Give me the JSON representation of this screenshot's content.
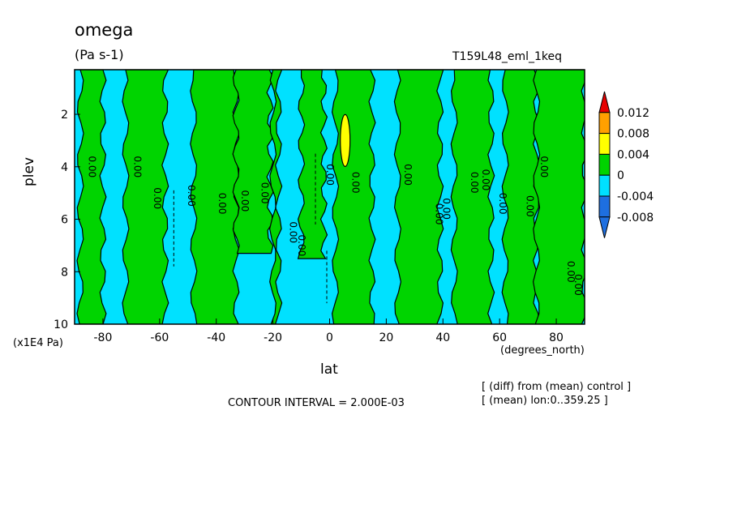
{
  "header": {
    "title": "omega",
    "units": "(Pa s-1)",
    "run_name": "T159L48_eml_1keq"
  },
  "notes": {
    "contour_interval": "CONTOUR INTERVAL = 2.000E-03",
    "diff_note": "[ (diff) from (mean) control ]",
    "mean_note": "[ (mean) lon:0..359.25 ]"
  },
  "chart_data": {
    "type": "heatmap",
    "title": "omega",
    "units": "(Pa s-1)",
    "xlabel": "lat",
    "x_units_label": "(degrees_north)",
    "ylabel": "plev",
    "y_units_label": "(x1E4 Pa)",
    "xlim": [
      -90,
      90
    ],
    "ylim": [
      0.3,
      10
    ],
    "y_reversed": true,
    "grid": false,
    "x_ticks": [
      -80,
      -60,
      -40,
      -20,
      0,
      20,
      40,
      60,
      80
    ],
    "x_tick_labels": [
      "-80",
      "-60",
      "-40",
      "-20",
      "0",
      "20",
      "40",
      "60",
      "80"
    ],
    "y_ticks": [
      2,
      4,
      6,
      8,
      10
    ],
    "y_tick_labels": [
      "2",
      "4",
      "6",
      "8",
      "10"
    ],
    "colorbar": {
      "placement": "right",
      "levels": [
        -0.008,
        -0.004,
        0,
        0.004,
        0.008,
        0.012
      ],
      "level_labels": [
        "-0.008",
        "-0.004",
        "0",
        "0.004",
        "0.008",
        "0.012"
      ],
      "colors": [
        "#1e6fe0",
        "#00e1ff",
        "#00d400",
        "#ffff00",
        "#ffa000",
        "#e60000"
      ],
      "bins": [
        {
          "range": "< -0.008",
          "color": "#1e6fe0"
        },
        {
          "range": "-0.008 to -0.004",
          "color": "#1e6fe0"
        },
        {
          "range": "-0.004 to 0",
          "color": "#00e1ff"
        },
        {
          "range": "0 to 0.004",
          "color": "#00d400"
        },
        {
          "range": "0.004 to 0.008",
          "color": "#ffff00"
        },
        {
          "range": "0.008 to 0.012",
          "color": "#ffa000"
        },
        {
          "range": "> 0.012",
          "color": "#e60000"
        }
      ]
    },
    "positive_bands": [
      {
        "lat_min": -88,
        "lat_max": -80,
        "top": 0.3,
        "bottom": 10
      },
      {
        "lat_min": -72,
        "lat_max": -58,
        "top": 0.3,
        "bottom": 10
      },
      {
        "lat_min": -48,
        "lat_max": -33,
        "top": 0.3,
        "bottom": 10
      },
      {
        "lat_min": -33,
        "lat_max": -21,
        "top": 0.3,
        "bottom": 7.3
      },
      {
        "lat_min": -20,
        "lat_max": -18,
        "top": 0.3,
        "bottom": 10
      },
      {
        "lat_min": -10,
        "lat_max": -2,
        "top": 0.3,
        "bottom": 7.5
      },
      {
        "lat_min": 2,
        "lat_max": 15,
        "top": 0.3,
        "bottom": 10
      },
      {
        "lat_min": 24,
        "lat_max": 39,
        "top": 0.3,
        "bottom": 10
      },
      {
        "lat_min": 44,
        "lat_max": 57,
        "top": 0.3,
        "bottom": 10
      },
      {
        "lat_min": 62,
        "lat_max": 73,
        "top": 0.3,
        "bottom": 10
      },
      {
        "lat_min": 73,
        "lat_max": 90,
        "top": 0.3,
        "bottom": 10
      }
    ],
    "maximum": {
      "lat": 5.5,
      "plev": 3.0,
      "level": "0.004 to 0.008"
    },
    "contour_labels": [
      {
        "lat": -84,
        "plev": 4.0,
        "text": "0.00"
      },
      {
        "lat": -68,
        "plev": 4.0,
        "text": "0.00"
      },
      {
        "lat": -61,
        "plev": 5.2,
        "text": "0.00"
      },
      {
        "lat": -49,
        "plev": 5.1,
        "text": "0.00"
      },
      {
        "lat": -38,
        "plev": 5.4,
        "text": "0.00"
      },
      {
        "lat": -30,
        "plev": 5.3,
        "text": "0.00"
      },
      {
        "lat": -23,
        "plev": 5.0,
        "text": "0.00"
      },
      {
        "lat": -13,
        "plev": 6.5,
        "text": "0.00"
      },
      {
        "lat": -10,
        "plev": 7.0,
        "text": "0.00"
      },
      {
        "lat": 0,
        "plev": 4.3,
        "text": "0.00"
      },
      {
        "lat": 9,
        "plev": 4.6,
        "text": "0.00"
      },
      {
        "lat": 27.5,
        "plev": 4.3,
        "text": "0.00"
      },
      {
        "lat": 38.5,
        "plev": 5.8,
        "text": "0.00"
      },
      {
        "lat": 41,
        "plev": 5.6,
        "text": "0.00"
      },
      {
        "lat": 51,
        "plev": 4.6,
        "text": "0.00"
      },
      {
        "lat": 55,
        "plev": 4.5,
        "text": "0.00"
      },
      {
        "lat": 61,
        "plev": 5.4,
        "text": "0.00"
      },
      {
        "lat": 70.5,
        "plev": 5.5,
        "text": "0.00"
      },
      {
        "lat": 75.5,
        "plev": 4.0,
        "text": "0.00"
      },
      {
        "lat": 85,
        "plev": 8.0,
        "text": "0.00"
      },
      {
        "lat": 87.5,
        "plev": 8.5,
        "text": "0.00"
      }
    ]
  }
}
